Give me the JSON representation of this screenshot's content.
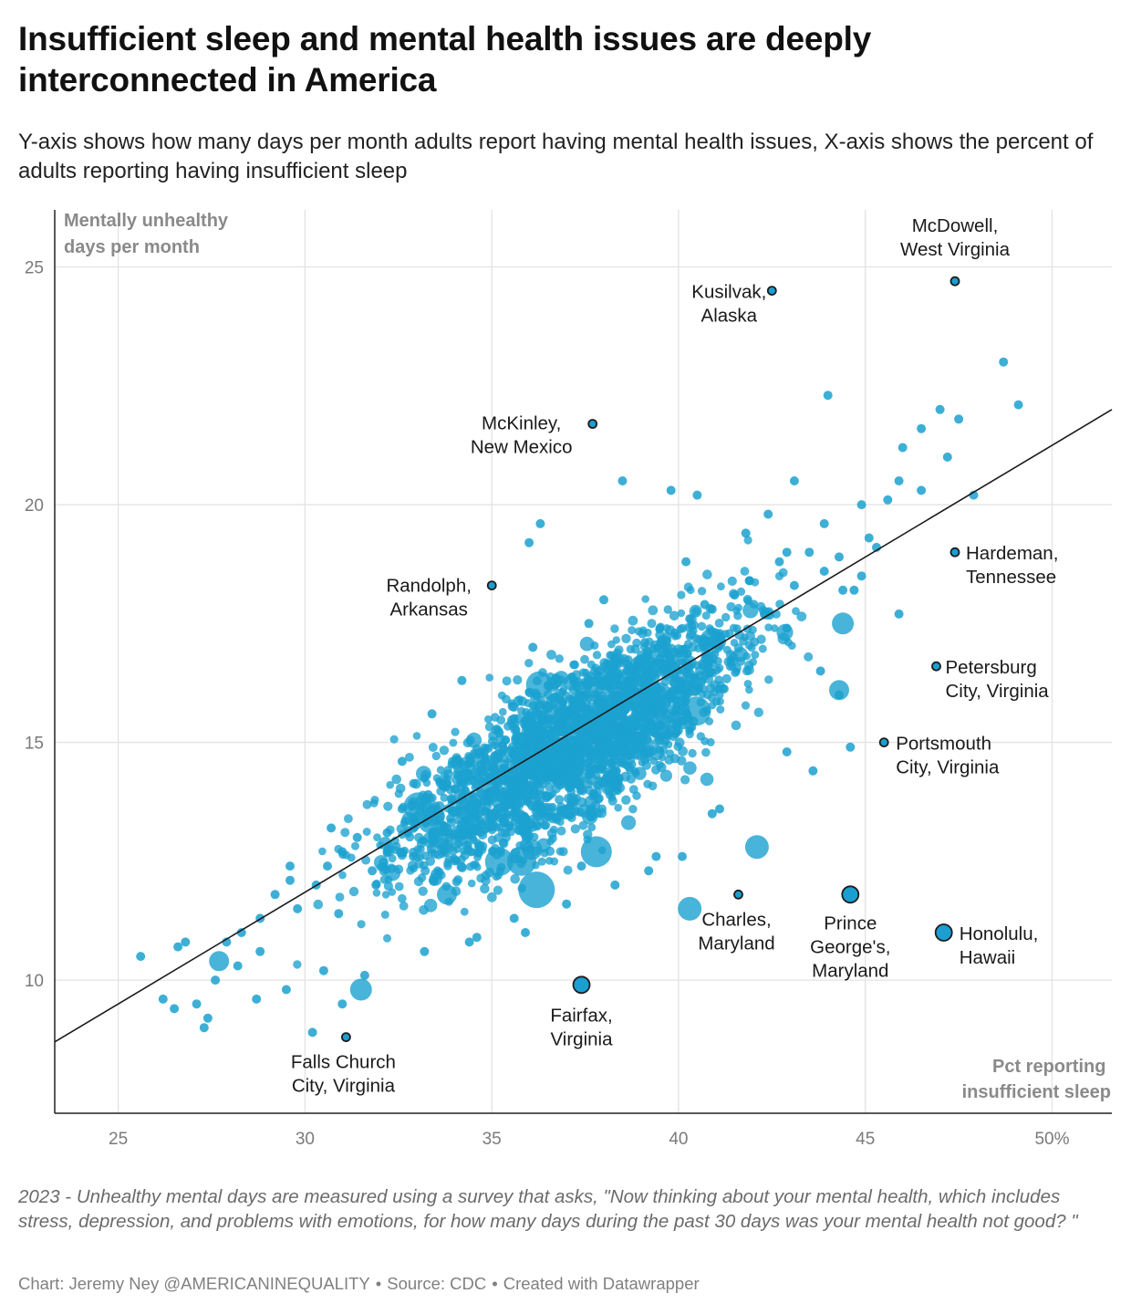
{
  "header": {
    "title": "Insufficient sleep and mental health issues are deeply interconnected in America",
    "subtitle": "Y-axis shows how many days per month adults report having mental health issues, X-axis shows the percent of adults reporting having insufficient sleep"
  },
  "footer": {
    "notes": "2023 - Unhealthy mental days are measured using a survey that asks, \"Now thinking about your mental health, which includes stress, depression, and problems with emotions, for how many days during the past 30 days was your mental health not good? \"",
    "credit_chart": "Chart: Jeremy Ney @AMERICANINEQUALITY",
    "credit_source": "Source: CDC",
    "credit_tool": "Created with Datawrapper",
    "separator": "•"
  },
  "colors": {
    "point": "#1ba1cf",
    "highlight": "#1a9fd0",
    "highlight_stroke": "#1d1d1d",
    "grid": "#e3e3e3",
    "axis_text": "#7a7a7a",
    "axis_title": "#8a8a8a",
    "trend_line": "#1a1a1a"
  },
  "chart_data": {
    "type": "scatter",
    "ylabel": "Mentally unhealthy days per month",
    "xlabel": "Pct reporting insufficient sleep",
    "xlim": [
      23.3,
      51.6
    ],
    "ylim": [
      7.2,
      26.2
    ],
    "x_ticks": [
      25,
      30,
      35,
      40,
      45,
      50
    ],
    "x_tick_labels": [
      "25",
      "30",
      "35",
      "40",
      "45",
      "50%"
    ],
    "y_ticks": [
      10,
      15,
      20,
      25
    ],
    "y_tick_labels": [
      "10",
      "15",
      "20",
      "25"
    ],
    "grid": true,
    "trend_line": {
      "x": [
        23.3,
        51.6
      ],
      "y": [
        8.7,
        22.0
      ]
    },
    "labeled_points": [
      {
        "name": "McDowell, West Virginia",
        "lines": [
          "McDowell,",
          "West Virginia"
        ],
        "x": 47.4,
        "y": 24.7,
        "size": "small"
      },
      {
        "name": "Kusilvak, Alaska",
        "lines": [
          "Kusilvak,",
          "Alaska"
        ],
        "x": 42.5,
        "y": 24.5,
        "size": "small"
      },
      {
        "name": "McKinley, New Mexico",
        "lines": [
          "McKinley,",
          "New Mexico"
        ],
        "x": 37.7,
        "y": 21.7,
        "size": "small"
      },
      {
        "name": "Randolph, Arkansas",
        "lines": [
          "Randolph,",
          "Arkansas"
        ],
        "x": 35.0,
        "y": 18.3,
        "size": "small"
      },
      {
        "name": "Hardeman, Tennessee",
        "lines": [
          "Hardeman,",
          "Tennessee"
        ],
        "x": 47.4,
        "y": 19.0,
        "size": "small"
      },
      {
        "name": "Petersburg City, Virginia",
        "lines": [
          "Petersburg",
          "City, Virginia"
        ],
        "x": 46.9,
        "y": 16.6,
        "size": "small"
      },
      {
        "name": "Portsmouth City, Virginia",
        "lines": [
          "Portsmouth",
          "City, Virginia"
        ],
        "x": 45.5,
        "y": 15.0,
        "size": "small"
      },
      {
        "name": "Charles, Maryland",
        "lines": [
          "Charles,",
          "Maryland"
        ],
        "x": 41.6,
        "y": 11.8,
        "size": "small"
      },
      {
        "name": "Prince George's, Maryland",
        "lines": [
          "Prince",
          "George's,",
          "Maryland"
        ],
        "x": 44.6,
        "y": 11.8,
        "size": "medium"
      },
      {
        "name": "Honolulu, Hawaii",
        "lines": [
          "Honolulu,",
          "Hawaii"
        ],
        "x": 47.1,
        "y": 11.0,
        "size": "medium"
      },
      {
        "name": "Fairfax, Virginia",
        "lines": [
          "Fairfax,",
          "Virginia"
        ],
        "x": 37.4,
        "y": 9.9,
        "size": "medium"
      },
      {
        "name": "Falls Church City, Virginia",
        "lines": [
          "Falls Church",
          "City, Virginia"
        ],
        "x": 31.1,
        "y": 8.8,
        "size": "small"
      }
    ],
    "background_points": {
      "description": "About 3,000 US counties; values read approximately from the plot",
      "x": [
        25.6,
        26.2,
        26.6,
        26.5,
        27.1,
        27.3,
        27.6,
        27.9,
        28.3,
        28.8,
        29.2,
        29.6,
        29.8,
        30.3,
        30.6,
        31.0,
        31.4,
        31.8,
        32.2,
        32.6,
        32.9,
        33.3,
        33.7,
        34.1,
        34.5,
        34.8,
        35.2,
        35.6,
        35.9,
        36.3,
        36.7,
        37.1,
        37.5,
        37.9,
        38.3,
        38.7,
        39.1,
        39.5,
        39.9,
        40.3,
        40.7,
        41.1,
        41.5,
        41.9,
        42.3,
        42.7,
        43.1,
        43.5,
        43.9,
        44.3,
        44.7,
        45.1,
        45.6,
        46.0,
        46.5,
        47.0,
        47.5,
        47.9,
        48.7,
        49.1,
        38.5,
        39.8,
        40.5,
        36.3,
        36.0,
        44.9,
        45.9,
        43.8,
        44.3,
        42.9,
        41.1,
        40.1,
        39.2,
        38.3,
        37.0,
        35.9,
        34.6,
        33.2,
        31.6,
        30.5,
        29.5,
        28.7,
        28.2,
        32.2,
        33.8,
        35.4,
        36.9,
        38.4,
        39.9,
        41.4,
        42.9,
        44.4,
        45.3,
        46.5,
        47.2,
        30.9,
        31.9,
        32.9,
        33.9,
        34.9,
        35.9,
        36.9,
        37.9,
        38.9,
        39.9,
        40.9,
        41.9,
        42.9,
        43.9,
        44.9,
        45.9,
        44.6,
        43.6,
        40.9,
        39.4,
        37.4,
        35.6,
        34.4,
        31.0,
        30.2,
        27.4,
        26.8,
        28.8,
        29.6,
        30.7,
        32.6,
        33.4,
        34.2,
        36.1,
        37.6,
        38.0,
        40.2,
        41.8,
        42.4,
        43.1,
        44.0
      ],
      "y": [
        10.5,
        9.6,
        10.7,
        9.4,
        9.5,
        9.0,
        10.0,
        10.8,
        11.0,
        10.6,
        11.8,
        12.1,
        11.5,
        12.0,
        12.4,
        12.7,
        13.0,
        12.3,
        13.1,
        13.6,
        13.4,
        13.9,
        14.1,
        14.6,
        14.2,
        14.8,
        15.2,
        15.5,
        15.0,
        15.8,
        16.2,
        15.6,
        16.0,
        16.5,
        16.8,
        16.3,
        17.1,
        17.4,
        16.9,
        17.6,
        17.9,
        17.2,
        18.1,
        18.4,
        17.7,
        18.8,
        18.3,
        19.0,
        18.6,
        18.9,
        18.2,
        19.3,
        20.1,
        21.2,
        21.6,
        22.0,
        21.8,
        20.2,
        23.0,
        22.1,
        20.5,
        20.3,
        20.2,
        19.6,
        19.2,
        18.5,
        17.7,
        16.5,
        16.0,
        14.8,
        13.6,
        12.6,
        12.3,
        12.0,
        11.6,
        11.0,
        10.9,
        10.6,
        10.1,
        10.2,
        9.8,
        9.6,
        10.3,
        12.7,
        13.2,
        13.9,
        14.5,
        15.3,
        16.1,
        16.7,
        17.4,
        18.2,
        19.1,
        20.3,
        21.0,
        11.4,
        12.0,
        12.6,
        13.4,
        14.2,
        14.7,
        15.4,
        16.1,
        16.6,
        17.3,
        17.8,
        18.4,
        19.0,
        19.6,
        20.0,
        20.5,
        14.9,
        14.4,
        13.5,
        12.6,
        12.4,
        11.3,
        10.8,
        9.5,
        8.9,
        9.2,
        10.8,
        11.3,
        12.4,
        13.2,
        14.6,
        15.6,
        16.3,
        17.0,
        17.5,
        18.0,
        18.8,
        19.4,
        19.8,
        20.5,
        22.3
      ],
      "sizes": "mostly small dots; larger dots for populous counties"
    }
  }
}
